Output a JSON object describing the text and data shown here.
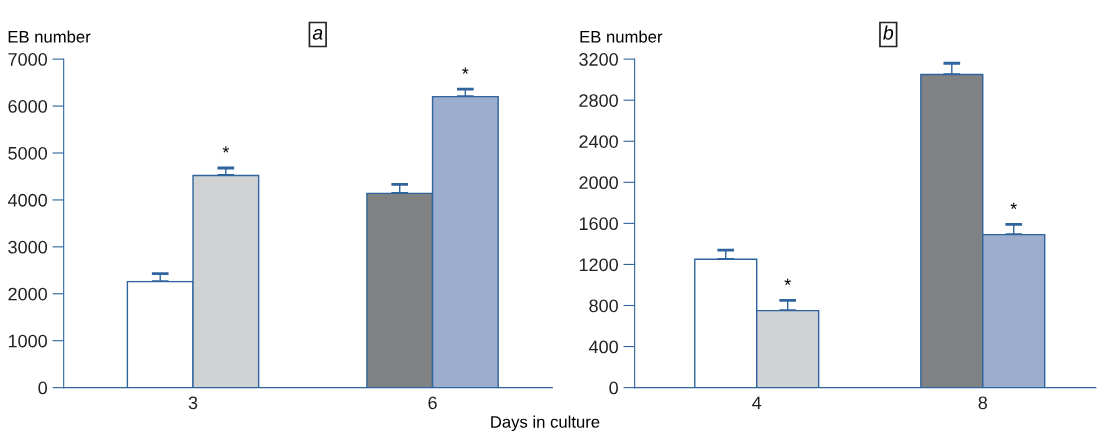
{
  "chart_data": [
    {
      "type": "bar",
      "title": "a",
      "ylabel": "EB number",
      "xlabel": "Days in culture",
      "categories": [
        "3",
        "6"
      ],
      "ylim": [
        0,
        7000
      ],
      "yticks": [
        0,
        1000,
        2000,
        3000,
        4000,
        5000,
        6000,
        7000
      ],
      "grid": false,
      "legend": false,
      "series": [
        {
          "colors": [
            "#ffffff",
            "#808183"
          ],
          "values": [
            2260,
            4140
          ],
          "errors": [
            [
              2260,
              2430
            ],
            [
              4140,
              4330
            ]
          ]
        },
        {
          "colors": [
            "#d1d2d4",
            "#9dadcd"
          ],
          "values": [
            4520,
            6200
          ],
          "errors": [
            [
              4520,
              4680
            ],
            [
              6200,
              6360
            ]
          ]
        }
      ],
      "annotations": [
        "*",
        "*"
      ]
    },
    {
      "type": "bar",
      "title": "b",
      "ylabel": "EB number",
      "categories": [
        "4",
        "8"
      ],
      "ylim": [
        0,
        3200
      ],
      "yticks": [
        0,
        400,
        800,
        1200,
        1600,
        2000,
        2400,
        2800,
        3200
      ],
      "grid": false,
      "legend": false,
      "series": [
        {
          "colors": [
            "#ffffff",
            "#808183"
          ],
          "values": [
            1250,
            3050
          ],
          "errors": [
            [
              1250,
              1340
            ],
            [
              3050,
              3160
            ]
          ]
        },
        {
          "colors": [
            "#d1d2d4",
            "#9dadcd"
          ],
          "values": [
            750,
            1490
          ],
          "errors": [
            [
              750,
              850
            ],
            [
              1490,
              1590
            ]
          ]
        }
      ],
      "annotations": [
        "*",
        "*"
      ]
    }
  ]
}
